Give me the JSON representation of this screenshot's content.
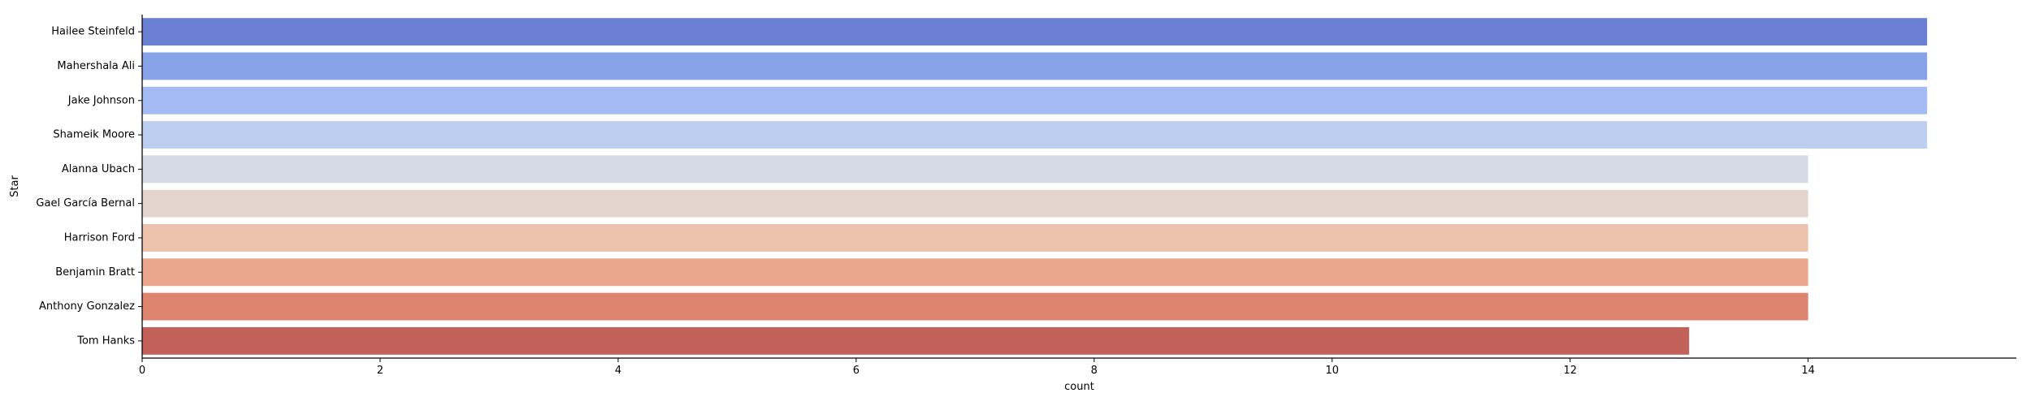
{
  "chart_data": {
    "type": "bar",
    "orientation": "horizontal",
    "xlabel": "count",
    "ylabel": "Star",
    "xlim": [
      0,
      15.75
    ],
    "xticks": [
      0,
      2,
      4,
      6,
      8,
      10,
      12,
      14
    ],
    "grid": false,
    "categories": [
      "Hailee Steinfeld",
      "Mahershala Ali",
      "Jake Johnson",
      "Shameik Moore",
      "Alanna Ubach",
      "Gael García Bernal",
      "Harrison Ford",
      "Benjamin Bratt",
      "Anthony Gonzalez",
      "Tom Hanks"
    ],
    "values": [
      15,
      15,
      15,
      15,
      14,
      14,
      14,
      14,
      14,
      13
    ],
    "colors": [
      "#6b7fd3",
      "#88a2e8",
      "#a3baf3",
      "#bdcff0",
      "#d5dae6",
      "#e3d4ce",
      "#ecc2ac",
      "#e9a68c",
      "#dd846e",
      "#c2605a"
    ]
  }
}
